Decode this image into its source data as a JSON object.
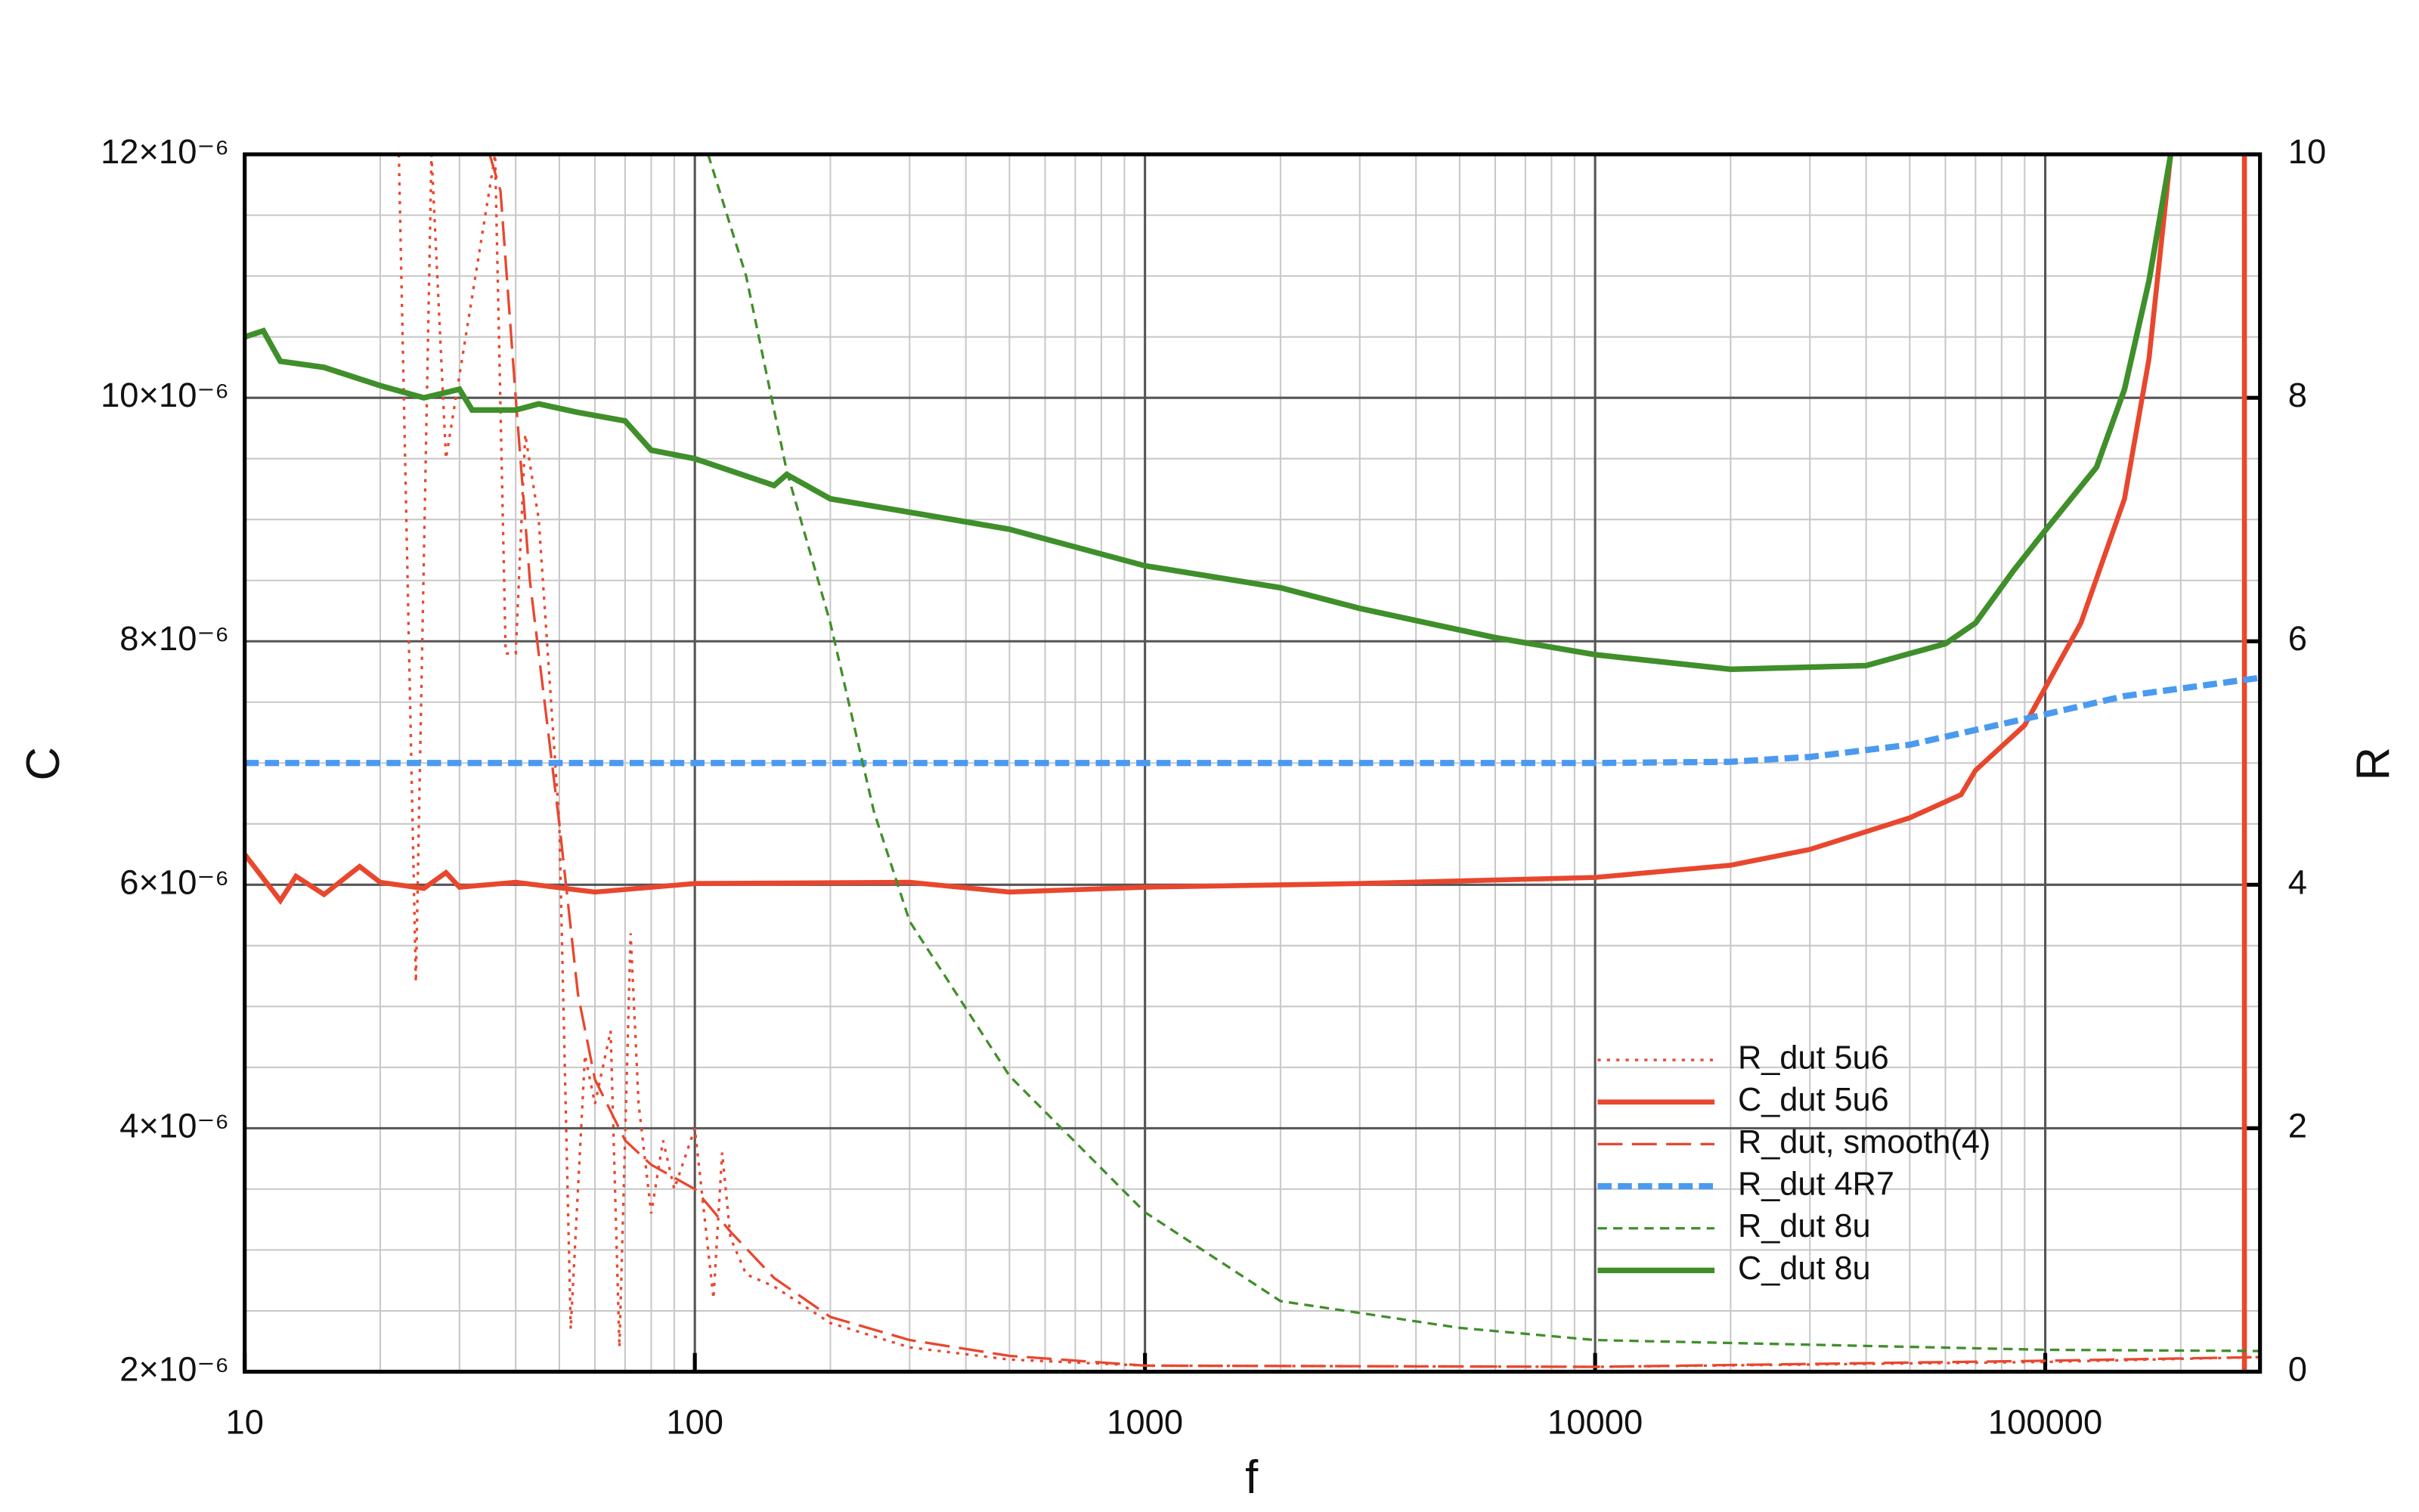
{
  "chart_data": {
    "type": "line",
    "xlabel": "f",
    "ylabel": "C",
    "y2label": "R",
    "xscale": "log",
    "grid": true,
    "legend": "lower right",
    "xlim": [
      10,
      300000
    ],
    "xticks": [
      10,
      100,
      1000,
      10000,
      100000
    ],
    "ylim": [
      2e-06,
      1.2e-05
    ],
    "yticks": [
      {
        "value": 2e-06,
        "label": "2×10⁻⁶"
      },
      {
        "value": 4e-06,
        "label": "4×10⁻⁶"
      },
      {
        "value": 6e-06,
        "label": "6×10⁻⁶"
      },
      {
        "value": 8e-06,
        "label": "8×10⁻⁶"
      },
      {
        "value": 1e-05,
        "label": "10×10⁻⁶"
      },
      {
        "value": 1.2e-05,
        "label": "12×10⁻⁶"
      }
    ],
    "y2lim": [
      0,
      10
    ],
    "y2ticks": [
      0,
      2,
      4,
      6,
      8,
      10
    ],
    "series": [
      {
        "name": "R_dut 5u6",
        "color": "#e8472e",
        "style": "dotted",
        "width": 1.6,
        "axis": "y2",
        "x": [
          22,
          24,
          26,
          28,
          36,
          38,
          40,
          42,
          45,
          50,
          53,
          57,
          60,
          65,
          68,
          72,
          75,
          80,
          85,
          90,
          100,
          110,
          115,
          120,
          130,
          150,
          200,
          300,
          500,
          1000,
          10000,
          100000,
          300000
        ],
        "values": [
          10,
          3.2,
          10,
          7.5,
          10,
          5.9,
          5.9,
          7.7,
          7.0,
          4.5,
          0.35,
          2.6,
          2.2,
          2.8,
          0.2,
          3.6,
          2.2,
          1.3,
          1.9,
          1.5,
          2.0,
          0.6,
          1.8,
          1.1,
          0.8,
          0.7,
          0.4,
          0.2,
          0.1,
          0.05,
          0.04,
          0.08,
          0.12
        ]
      },
      {
        "name": "C_dut 5u6",
        "color": "#e8472e",
        "style": "solid",
        "width": 3.2,
        "x": [
          10,
          12,
          13,
          15,
          18,
          20,
          25,
          28,
          30,
          40,
          60,
          100,
          300,
          500,
          1000,
          3000,
          10000,
          20000,
          30000,
          50000,
          65000,
          70000,
          90000,
          120000,
          150000,
          170000,
          190000,
          275000,
          277000,
          277000
        ],
        "values": [
          6.25e-06,
          5.87e-06,
          6.07e-06,
          5.92e-06,
          6.15e-06,
          6.02e-06,
          5.97e-06,
          6.1e-06,
          5.98e-06,
          6.02e-06,
          5.94e-06,
          6.01e-06,
          6.02e-06,
          5.94e-06,
          5.98e-06,
          6.01e-06,
          6.06e-06,
          6.16e-06,
          6.29e-06,
          6.55e-06,
          6.74e-06,
          6.94e-06,
          7.31e-06,
          8.15e-06,
          9.17e-06,
          1.032e-05,
          1.2e-05,
          null,
          1.2e-05,
          2e-06
        ]
      },
      {
        "name": "R_dut, smooth(4)",
        "color": "#e8472e",
        "style": "longdash",
        "width": 1.6,
        "axis": "y2",
        "x": [
          35,
          37,
          40,
          43,
          50,
          55,
          60,
          70,
          80,
          100,
          120,
          150,
          200,
          300,
          500,
          1000,
          10000,
          100000,
          300000
        ],
        "values": [
          10,
          9.7,
          8.0,
          6.5,
          4.5,
          3.1,
          2.4,
          1.9,
          1.7,
          1.5,
          1.15,
          0.77,
          0.45,
          0.26,
          0.13,
          0.05,
          0.04,
          0.09,
          0.12
        ]
      },
      {
        "name": "R_dut 4R7",
        "color": "#4a9af0",
        "style": "dashed",
        "width": 4,
        "axis": "y2",
        "x": [
          10,
          100,
          1000,
          10000,
          20000,
          30000,
          50000,
          80000,
          100000,
          150000,
          300000
        ],
        "values": [
          5.0,
          5.0,
          5.0,
          5.0,
          5.01,
          5.05,
          5.15,
          5.32,
          5.4,
          5.55,
          5.7
        ]
      },
      {
        "name": "R_dut 8u",
        "color": "#3f8f2a",
        "style": "thindash",
        "width": 1.6,
        "axis": "y2",
        "x": [
          107,
          130,
          160,
          200,
          250,
          300,
          500,
          1000,
          2000,
          5000,
          10000,
          100000,
          300000
        ],
        "values": [
          10,
          9.0,
          7.4,
          6.15,
          4.6,
          3.7,
          2.43,
          1.31,
          0.58,
          0.36,
          0.26,
          0.18,
          0.17
        ]
      },
      {
        "name": "C_dut 8u",
        "color": "#3f8f2a",
        "style": "solid",
        "width": 3.6,
        "x": [
          10,
          11,
          12,
          15,
          20,
          25,
          30,
          32,
          40,
          45,
          55,
          70,
          80,
          100,
          150,
          160,
          200,
          300,
          500,
          1000,
          2000,
          3000,
          6000,
          10000,
          20000,
          40000,
          60000,
          70000,
          85000,
          100000,
          130000,
          150000,
          170000,
          190000
        ],
        "values": [
          1.05e-05,
          1.055e-05,
          1.03e-05,
          1.025e-05,
          1.01e-05,
          1e-05,
          1.007e-05,
          9.9e-06,
          9.9e-06,
          9.95e-06,
          9.88e-06,
          9.81e-06,
          9.57e-06,
          9.5e-06,
          9.28e-06,
          9.37e-06,
          9.17e-06,
          9.06e-06,
          8.92e-06,
          8.62e-06,
          8.44e-06,
          8.27e-06,
          8.03e-06,
          7.89e-06,
          7.77e-06,
          7.8e-06,
          7.98e-06,
          8.15e-06,
          8.58e-06,
          8.91e-06,
          9.43e-06,
          1.007e-05,
          1.096e-05,
          1.2e-05
        ]
      }
    ]
  }
}
